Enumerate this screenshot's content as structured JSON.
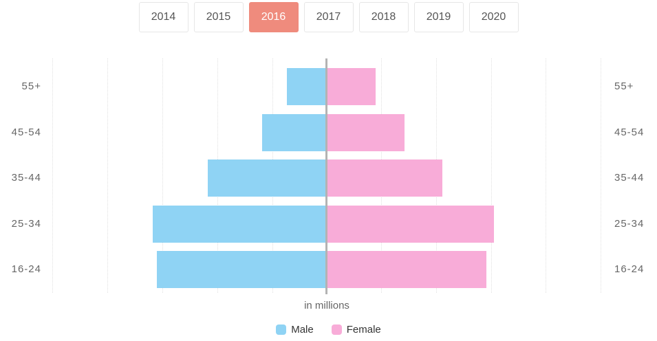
{
  "tabs": {
    "items": [
      {
        "label": "2014",
        "active": false
      },
      {
        "label": "2015",
        "active": false
      },
      {
        "label": "2016",
        "active": true
      },
      {
        "label": "2017",
        "active": false
      },
      {
        "label": "2018",
        "active": false
      },
      {
        "label": "2019",
        "active": false
      },
      {
        "label": "2020",
        "active": false
      }
    ]
  },
  "colors": {
    "male": "#8fd3f4",
    "female": "#f8acd8",
    "active_tab": "#ef8b7d",
    "axis_line": "#b3b3b3",
    "gridline": "#e0e0e0",
    "label_text": "#666666"
  },
  "chart_data": {
    "type": "bar",
    "subtype": "population-pyramid",
    "orientation": "horizontal",
    "title": "",
    "xlabel": "in millions",
    "categories": [
      "55+",
      "45-54",
      "35-44",
      "25-34",
      "16-24"
    ],
    "series": [
      {
        "name": "Male",
        "values": [
          0.73,
          1.18,
          2.17,
          3.18,
          3.1
        ]
      },
      {
        "name": "Female",
        "values": [
          0.89,
          1.42,
          2.11,
          3.05,
          2.92
        ]
      }
    ],
    "x_range_each_side": [
      0,
      5
    ],
    "gridlines_per_side": 5,
    "grid": "dotted-vertical",
    "legend_position": "bottom-center",
    "selected_year": "2016"
  }
}
